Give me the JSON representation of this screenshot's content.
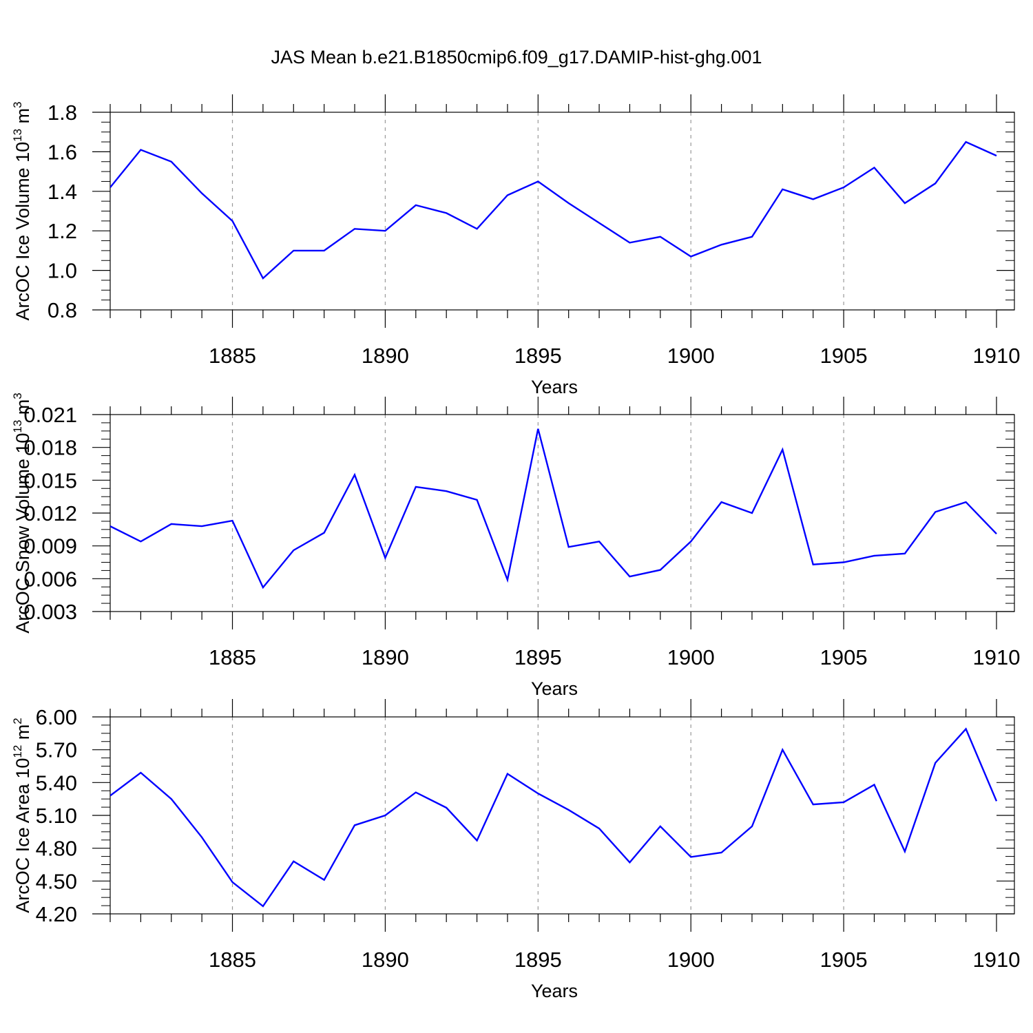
{
  "title": "JAS Mean b.e21.B1850cmip6.f09_g17.DAMIP-hist-ghg.001",
  "chart_data": [
    {
      "type": "line",
      "xlabel": "Years",
      "ylabel": "ArcOC Ice Volume 10",
      "ylabel_exp": "13",
      "ylabel_unit": " m",
      "ylabel_unit_exp": "3",
      "xlim": [
        1881,
        1910
      ],
      "ylim": [
        0.8,
        1.8
      ],
      "x_ticks": [
        1885,
        1890,
        1895,
        1900,
        1905,
        1910
      ],
      "y_ticks": [
        "0.8",
        "1.0",
        "1.2",
        "1.4",
        "1.6",
        "1.8"
      ],
      "grid": "vertical dashed at major x ticks",
      "series": [
        {
          "color": "#0000ff",
          "x": [
            1881,
            1882,
            1883,
            1884,
            1885,
            1886,
            1887,
            1888,
            1889,
            1890,
            1891,
            1892,
            1893,
            1894,
            1895,
            1896,
            1897,
            1898,
            1899,
            1900,
            1901,
            1902,
            1903,
            1904,
            1905,
            1906,
            1907,
            1908,
            1909,
            1910
          ],
          "values": [
            1.42,
            1.61,
            1.55,
            1.39,
            1.25,
            0.96,
            1.1,
            1.1,
            1.21,
            1.2,
            1.33,
            1.29,
            1.21,
            1.38,
            1.45,
            1.34,
            1.24,
            1.14,
            1.17,
            1.07,
            1.13,
            1.17,
            1.41,
            1.36,
            1.42,
            1.52,
            1.34,
            1.44,
            1.65,
            1.58
          ]
        }
      ]
    },
    {
      "type": "line",
      "xlabel": "Years",
      "ylabel": "ArcOC Snow Volume 10",
      "ylabel_exp": "13",
      "ylabel_unit": " m",
      "ylabel_unit_exp": "3",
      "xlim": [
        1881,
        1910
      ],
      "ylim": [
        0.003,
        0.021
      ],
      "x_ticks": [
        1885,
        1890,
        1895,
        1900,
        1905,
        1910
      ],
      "y_ticks": [
        "0.003",
        "0.006",
        "0.009",
        "0.012",
        "0.015",
        "0.018",
        "0.021"
      ],
      "grid": "vertical dashed at major x ticks",
      "series": [
        {
          "color": "#0000ff",
          "x": [
            1881,
            1882,
            1883,
            1884,
            1885,
            1886,
            1887,
            1888,
            1889,
            1890,
            1891,
            1892,
            1893,
            1894,
            1895,
            1896,
            1897,
            1898,
            1899,
            1900,
            1901,
            1902,
            1903,
            1904,
            1905,
            1906,
            1907,
            1908,
            1909,
            1910
          ],
          "values": [
            0.0108,
            0.0094,
            0.011,
            0.0108,
            0.0113,
            0.0052,
            0.0086,
            0.0102,
            0.0155,
            0.0079,
            0.0144,
            0.014,
            0.0132,
            0.0059,
            0.0197,
            0.0089,
            0.0094,
            0.0062,
            0.0068,
            0.0094,
            0.013,
            0.012,
            0.0178,
            0.0073,
            0.0075,
            0.0081,
            0.0083,
            0.0121,
            0.013,
            0.0101
          ]
        }
      ]
    },
    {
      "type": "line",
      "xlabel": "Years",
      "ylabel": "ArcOC Ice Area 10",
      "ylabel_exp": "12",
      "ylabel_unit": " m",
      "ylabel_unit_exp": "2",
      "xlim": [
        1881,
        1910
      ],
      "ylim": [
        4.2,
        6.0
      ],
      "x_ticks": [
        1885,
        1890,
        1895,
        1900,
        1905,
        1910
      ],
      "y_ticks": [
        "4.20",
        "4.50",
        "4.80",
        "5.10",
        "5.40",
        "5.70",
        "6.00"
      ],
      "grid": "vertical dashed at major x ticks",
      "series": [
        {
          "color": "#0000ff",
          "x": [
            1881,
            1882,
            1883,
            1884,
            1885,
            1886,
            1887,
            1888,
            1889,
            1890,
            1891,
            1892,
            1893,
            1894,
            1895,
            1896,
            1897,
            1898,
            1899,
            1900,
            1901,
            1902,
            1903,
            1904,
            1905,
            1906,
            1907,
            1908,
            1909,
            1910
          ],
          "values": [
            5.28,
            5.49,
            5.25,
            4.9,
            4.49,
            4.27,
            4.68,
            4.51,
            5.01,
            5.1,
            5.31,
            5.17,
            4.87,
            5.48,
            5.3,
            5.15,
            4.98,
            4.67,
            5.0,
            4.72,
            4.76,
            5.0,
            5.7,
            5.2,
            5.22,
            5.38,
            4.77,
            5.58,
            5.89,
            5.23
          ]
        }
      ]
    }
  ]
}
